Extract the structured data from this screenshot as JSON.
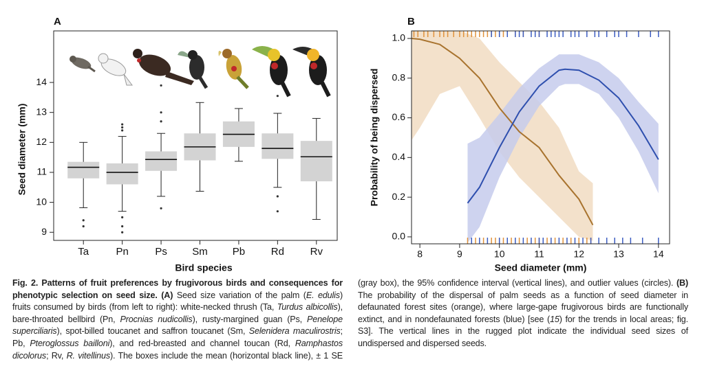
{
  "chart_data": [
    {
      "type": "box",
      "panel_label": "A",
      "ylabel": "Seed diameter (mm)",
      "xlabel": "Bird species",
      "categories": [
        "Ta",
        "Pn",
        "Ps",
        "Sm",
        "Pb",
        "Rd",
        "Rv"
      ],
      "boxes": [
        {
          "mean": 11.17,
          "se_low": 10.8,
          "se_high": 11.35,
          "whisker_low": 9.82,
          "whisker_high": 12.0,
          "outliers": [
            9.4,
            9.2
          ]
        },
        {
          "mean": 11.0,
          "se_low": 10.6,
          "se_high": 11.3,
          "whisker_low": 9.7,
          "whisker_high": 12.2,
          "outliers": [
            12.6,
            12.5,
            12.4,
            9.5,
            9.2,
            9.0
          ]
        },
        {
          "mean": 11.43,
          "se_low": 11.05,
          "se_high": 11.7,
          "whisker_low": 10.2,
          "whisker_high": 12.3,
          "outliers": [
            13.9,
            13.0,
            12.7,
            9.8
          ]
        },
        {
          "mean": 11.85,
          "se_low": 11.4,
          "se_high": 12.3,
          "whisker_low": 10.37,
          "whisker_high": 13.33,
          "outliers": []
        },
        {
          "mean": 12.27,
          "se_low": 11.85,
          "se_high": 12.7,
          "whisker_low": 11.37,
          "whisker_high": 13.13,
          "outliers": []
        },
        {
          "mean": 11.8,
          "se_low": 11.45,
          "se_high": 12.3,
          "whisker_low": 10.5,
          "whisker_high": 12.97,
          "outliers": [
            13.55,
            10.2,
            9.7
          ]
        },
        {
          "mean": 11.52,
          "se_low": 10.7,
          "se_high": 12.05,
          "whisker_low": 9.43,
          "whisker_high": 12.8,
          "outliers": []
        }
      ],
      "box_color": "#d3d3d3",
      "ylim": [
        8.73,
        15.72
      ],
      "yticks": [
        9,
        10,
        11,
        12,
        13,
        14
      ]
    },
    {
      "type": "line",
      "panel_label": "B",
      "xlabel": "Seed diameter (mm)",
      "ylabel": "Probability of being dispersed",
      "xlim": [
        7.79,
        14.28
      ],
      "xticks": [
        8,
        9,
        10,
        11,
        12,
        13,
        14
      ],
      "ylim": [
        -0.035,
        1.038
      ],
      "yticks": [
        {
          "value": 0,
          "label": "0.0"
        },
        {
          "value": 0.2,
          "label": "0.2"
        },
        {
          "value": 0.4,
          "label": "0.4"
        },
        {
          "value": 0.6,
          "label": "0.6"
        },
        {
          "value": 0.8,
          "label": "0.8"
        },
        {
          "value": 1,
          "label": "1.0"
        }
      ],
      "series": [
        {
          "color": "#a8732e",
          "band_color": "#f1dcc2",
          "rug_color": "#e0913a",
          "x": [
            7.8,
            8,
            8.5,
            9,
            9.5,
            10,
            10.5,
            11,
            11.5,
            12,
            12.35
          ],
          "values": [
            1.0,
            0.996,
            0.97,
            0.9,
            0.8,
            0.65,
            0.53,
            0.45,
            0.31,
            0.19,
            0.06
          ],
          "lower": [
            0.49,
            0.55,
            0.72,
            0.76,
            0.6,
            0.43,
            0.3,
            0.2,
            0.1,
            0.0,
            -0.02
          ],
          "upper": [
            1.04,
            1.04,
            1.04,
            1.04,
            1.0,
            0.88,
            0.78,
            0.68,
            0.55,
            0.33,
            0.27
          ],
          "rug_top_x": [
            7.85,
            7.95,
            8.1,
            8.2,
            8.35,
            8.5,
            8.6,
            8.7,
            8.85,
            9.0,
            9.1,
            9.2,
            9.3,
            9.4,
            9.5,
            9.6,
            9.7,
            9.8,
            9.9,
            10.0,
            10.1,
            10.2,
            10.4,
            10.6,
            11.0
          ],
          "rug_bottom_x": [
            9.2,
            9.4,
            9.6,
            9.8,
            9.9,
            10.0,
            10.1,
            10.3,
            10.5,
            10.7,
            10.9,
            11.0,
            11.2,
            11.4,
            11.6,
            11.8,
            12.0,
            12.2,
            12.3
          ]
        },
        {
          "color": "#2e4fae",
          "band_color": "#c6cbec",
          "rug_color": "#3a5bc0",
          "x": [
            9.2,
            9.5,
            10,
            10.5,
            11,
            11.5,
            11.65,
            12,
            12.5,
            13,
            13.5,
            14
          ],
          "values": [
            0.17,
            0.25,
            0.45,
            0.63,
            0.76,
            0.84,
            0.845,
            0.84,
            0.79,
            0.7,
            0.56,
            0.39
          ],
          "lower": [
            -0.03,
            0.05,
            0.3,
            0.5,
            0.66,
            0.76,
            0.77,
            0.77,
            0.72,
            0.6,
            0.43,
            0.22
          ],
          "upper": [
            0.47,
            0.5,
            0.62,
            0.75,
            0.85,
            0.92,
            0.92,
            0.92,
            0.88,
            0.8,
            0.68,
            0.57
          ],
          "rug_top_x": [
            9.8,
            10.0,
            10.2,
            10.4,
            10.5,
            10.6,
            10.8,
            10.9,
            11.0,
            11.2,
            11.3,
            11.4,
            11.5,
            11.6,
            11.8,
            11.9,
            12.0,
            12.2,
            12.4,
            12.5,
            12.7,
            12.9,
            13.0,
            13.2,
            13.5,
            13.8,
            14.0
          ],
          "rug_bottom_x": [
            9.3,
            9.5,
            9.7,
            10.0,
            10.2,
            10.4,
            10.6,
            10.8,
            11.0,
            11.1,
            11.3,
            11.5,
            11.7,
            11.9,
            12.1,
            12.3,
            12.5,
            12.7,
            12.9,
            13.1,
            13.3,
            13.6,
            14.0
          ]
        }
      ]
    }
  ],
  "caption": {
    "runs": [
      {
        "bold": "Fig. 2. Patterns of fruit preferences by frugivorous birds and consequences for phenotypic selection on seed size. (A)"
      },
      " Seed size variation of the palm (",
      {
        "italic": "E. edulis"
      },
      ") fruits consumed by birds (from left to right): white-necked thrush (Ta, ",
      {
        "italic": "Turdus albicollis"
      },
      "), bare-throated bellbird (Pn, ",
      {
        "italic": "Procnias nudicollis"
      },
      "), rusty-margined guan (Ps, ",
      {
        "italic": "Penelope superciliaris"
      },
      "), spot-billed toucanet and saffron toucanet (Sm, ",
      {
        "italic": "Selenidera maculirostris"
      },
      "; Pb, ",
      {
        "italic": "Pteroglossus bailloni"
      },
      "), and red-breasted and channel toucan (Rd, ",
      {
        "italic": "Ramphastos dicolorus"
      },
      "; Rv, ",
      {
        "italic": "R. vitellinus"
      },
      "). The boxes include the mean (horizontal black line), ± 1 SE (gray box), the 95% confidence interval (vertical lines), and outlier values (circles). ",
      {
        "bold": "(B)"
      },
      " The probability of the dispersal of palm seeds as a function of seed diameter in defaunated forest sites (orange), where large-gape frugivorous birds are functionally extinct, and in nondefaunated forests (blue) [see (",
      {
        "italic": "15"
      },
      ") for the trends in local areas; fig. S3]. The vertical lines in the rugged plot indicate the individual seed sizes of undispersed and dispersed seeds."
    ]
  }
}
